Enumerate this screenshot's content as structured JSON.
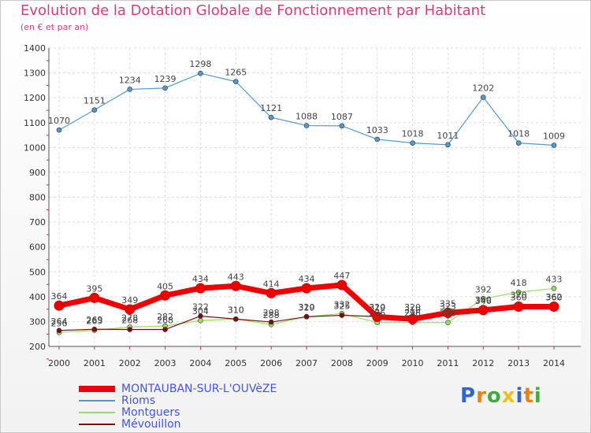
{
  "header": {
    "title": "Evolution de la Dotation Globale de Fonctionnement par Habitant",
    "subtitle": "(en € et par an)"
  },
  "logo": {
    "text": "Proxiti",
    "colors": [
      "#3366cc",
      "#e8801a",
      "#44aa44",
      "#e8c21a"
    ]
  },
  "chart_data": {
    "type": "line",
    "x": [
      "2000",
      "2001",
      "2002",
      "2003",
      "2004",
      "2005",
      "2006",
      "2007",
      "2008",
      "2009",
      "2010",
      "2011",
      "2012",
      "2013",
      "2014"
    ],
    "ylim": [
      200,
      1400
    ],
    "yticks": [
      200,
      300,
      400,
      500,
      600,
      700,
      800,
      900,
      1000,
      1100,
      1200,
      1300,
      1400
    ],
    "grid": true,
    "legend_position": "bottom-left",
    "series": [
      {
        "name": "MONTAUBAN-SUR-L'OUVèZE",
        "color": "#ee0000",
        "width": 7,
        "values": [
          364,
          395,
          349,
          405,
          434,
          443,
          414,
          434,
          447,
          319,
          310,
          335,
          346,
          360,
          360
        ]
      },
      {
        "name": "Rioms",
        "color": "#5599cc",
        "width": 1.2,
        "values": [
          1070,
          1151,
          1234,
          1239,
          1298,
          1265,
          1121,
          1088,
          1087,
          1033,
          1018,
          1011,
          1202,
          1018,
          1009
        ]
      },
      {
        "name": "Montguers",
        "color": "#99dd66",
        "width": 1.2,
        "values": [
          256,
          265,
          278,
          282,
          304,
          310,
          288,
          320,
          332,
          296,
          296,
          296,
          392,
          418,
          433
        ]
      },
      {
        "name": "Mévouillon",
        "color": "#771111",
        "width": 1.2,
        "values": [
          264,
          269,
          268,
          268,
          322,
          310,
          298,
          319,
          325,
          320,
          320,
          323,
          350,
          370,
          362
        ]
      }
    ],
    "data_labels": {
      "MONTAUBAN-SUR-L'OUVèZE": [
        "364",
        "395",
        "349",
        "405",
        "434",
        "443",
        "414",
        "434",
        "447",
        "319",
        "310",
        "335",
        "346",
        "360",
        "360"
      ],
      "Rioms": [
        "1070",
        "1151",
        "1234",
        "1239",
        "1298",
        "1265",
        "1121",
        "1088",
        "1087",
        "1033",
        "1018",
        "1011",
        "1202",
        "1018",
        "1009"
      ],
      "Montguers": [
        "256",
        "265",
        "278",
        "282",
        "304",
        "310",
        "288",
        "320",
        "332",
        "296",
        "296",
        "296",
        "392",
        "418",
        "433"
      ],
      "Mévouillon": [
        "264",
        "269",
        "268",
        "268",
        "322",
        "310",
        "298",
        "319",
        "325",
        "320",
        "320",
        "323",
        "350",
        "370",
        "362"
      ]
    }
  }
}
